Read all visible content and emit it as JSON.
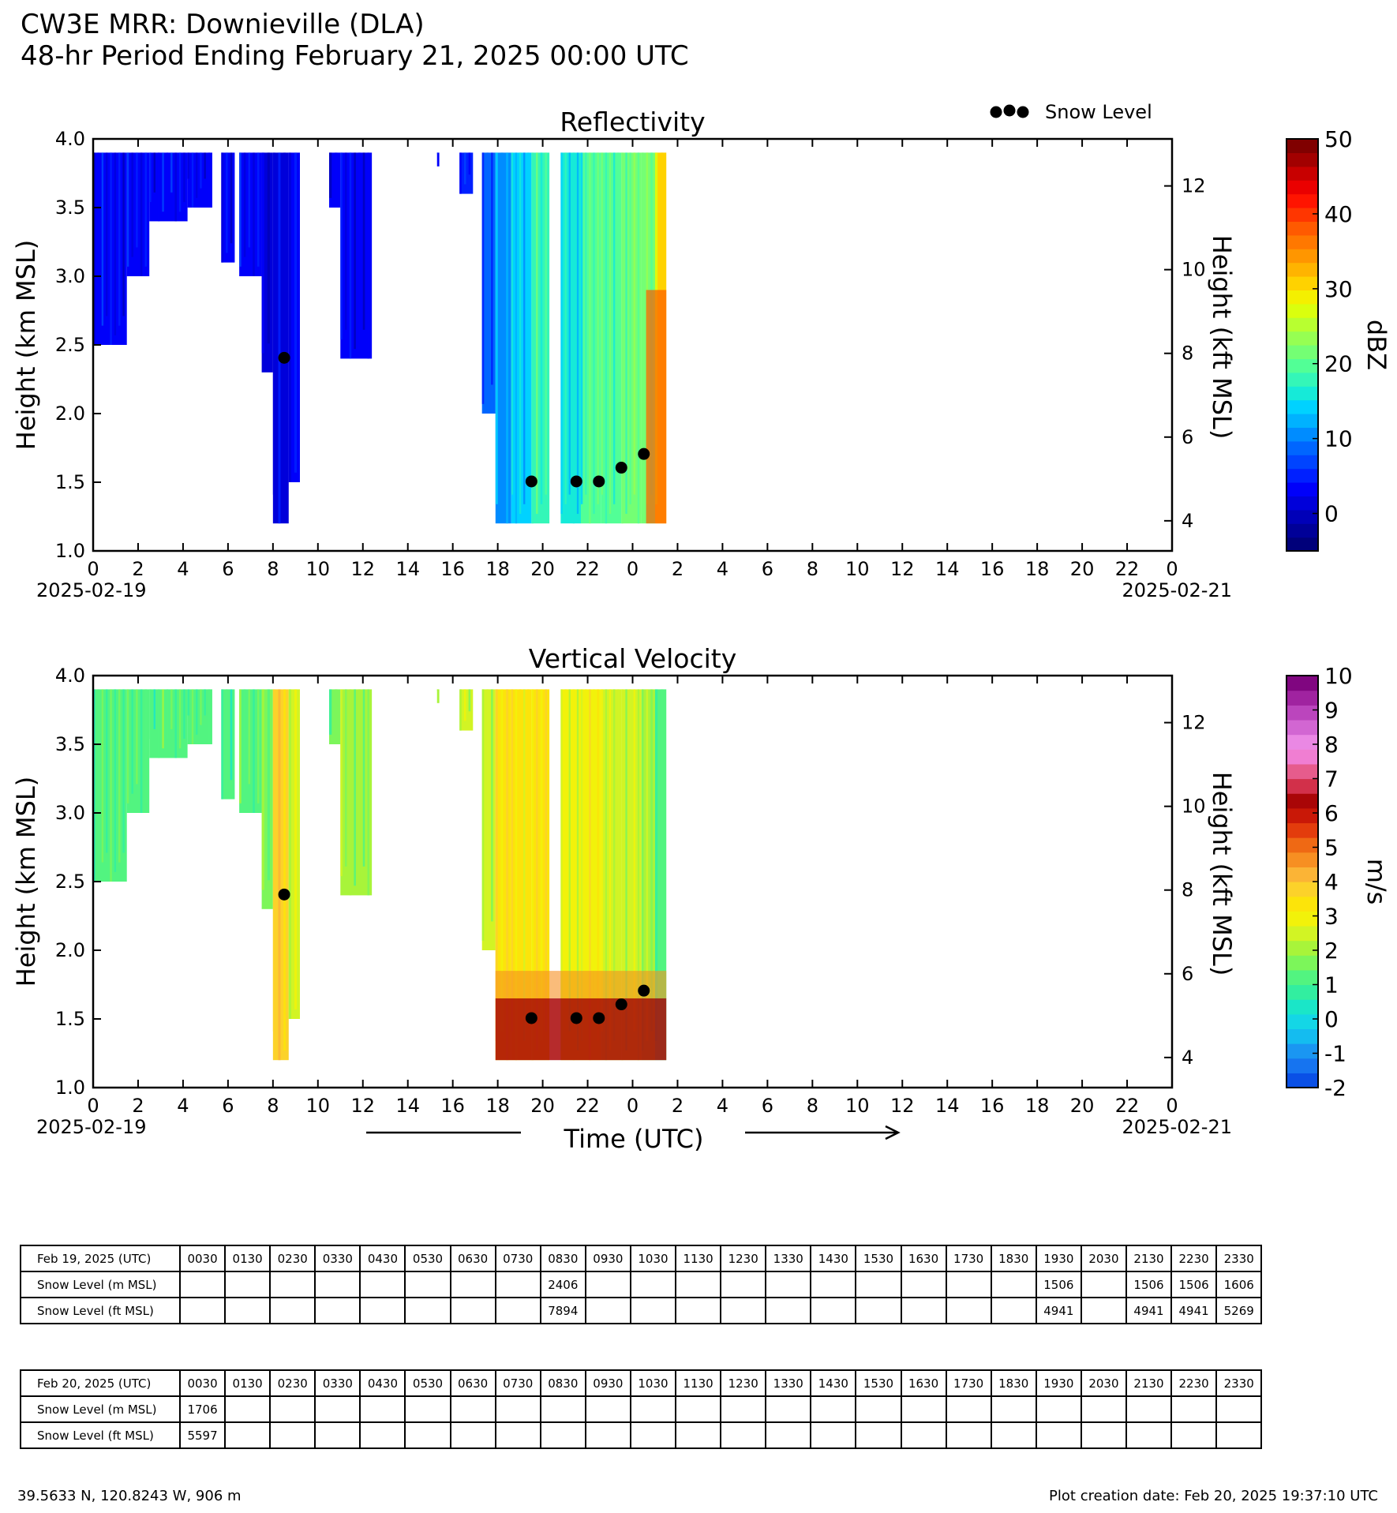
{
  "header": {
    "title": "CW3E MRR: Downieville (DLA)",
    "subtitle": "48-hr Period Ending February 21, 2025 00:00 UTC"
  },
  "legend": {
    "snow_level": "Snow Level"
  },
  "chart_data": [
    {
      "type": "heatmap",
      "title": "Reflectivity",
      "ylabel": "Height (km MSL)",
      "y2label": "Height (kft MSL)",
      "ylim": [
        1.0,
        4.0
      ],
      "yticks": [
        "1.0",
        "1.5",
        "2.0",
        "2.5",
        "3.0",
        "3.5",
        "4.0"
      ],
      "y2ticks": [
        "4",
        "6",
        "8",
        "10",
        "12"
      ],
      "xlim_hours": [
        0,
        48
      ],
      "xtick_labels": [
        "0",
        "2",
        "4",
        "6",
        "8",
        "10",
        "12",
        "14",
        "16",
        "18",
        "20",
        "22",
        "0",
        "2",
        "4",
        "6",
        "8",
        "10",
        "12",
        "14",
        "16",
        "18",
        "20",
        "22",
        "0"
      ],
      "x_start_label": "2025-02-19",
      "x_end_label": "2025-02-21",
      "colorbar": {
        "label": "dBZ",
        "min": -5,
        "max": 50,
        "ticks": [
          "0",
          "10",
          "20",
          "30",
          "40",
          "50"
        ]
      },
      "snow_level_points": [
        {
          "hour": 8.5,
          "km": 2.406
        },
        {
          "hour": 19.5,
          "km": 1.506
        },
        {
          "hour": 21.5,
          "km": 1.506
        },
        {
          "hour": 22.5,
          "km": 1.506
        },
        {
          "hour": 23.5,
          "km": 1.606
        },
        {
          "hour": 24.5,
          "km": 1.706
        }
      ],
      "echo_columns": [
        {
          "from": 0.0,
          "to": 1.5,
          "base_km": 2.5,
          "value": 3
        },
        {
          "from": 1.5,
          "to": 2.5,
          "base_km": 3.0,
          "value": 4
        },
        {
          "from": 2.5,
          "to": 4.2,
          "base_km": 3.4,
          "value": 4
        },
        {
          "from": 4.2,
          "to": 5.3,
          "base_km": 3.5,
          "value": 3
        },
        {
          "from": 5.7,
          "to": 6.3,
          "base_km": 3.1,
          "value": 4
        },
        {
          "from": 6.5,
          "to": 7.5,
          "base_km": 3.0,
          "value": 3
        },
        {
          "from": 7.5,
          "to": 8.0,
          "base_km": 2.3,
          "value": 2
        },
        {
          "from": 8.0,
          "to": 8.7,
          "base_km": 1.2,
          "value": 2
        },
        {
          "from": 8.7,
          "to": 9.2,
          "base_km": 1.5,
          "value": 3
        },
        {
          "from": 10.5,
          "to": 11.0,
          "base_km": 3.5,
          "value": 3
        },
        {
          "from": 11.0,
          "to": 12.4,
          "base_km": 2.4,
          "value": 3
        },
        {
          "from": 15.3,
          "to": 15.4,
          "base_km": 3.8,
          "value": 4
        },
        {
          "from": 16.3,
          "to": 16.9,
          "base_km": 3.6,
          "value": 5
        },
        {
          "from": 17.3,
          "to": 17.9,
          "base_km": 2.0,
          "value": 9
        },
        {
          "from": 17.9,
          "to": 18.6,
          "base_km": 1.2,
          "value": 11
        },
        {
          "from": 18.6,
          "to": 19.5,
          "base_km": 1.2,
          "value": 15
        },
        {
          "from": 19.5,
          "to": 20.3,
          "base_km": 1.2,
          "value": 18
        },
        {
          "from": 20.8,
          "to": 21.7,
          "base_km": 1.2,
          "value": 16
        },
        {
          "from": 21.7,
          "to": 22.6,
          "base_km": 1.2,
          "value": 19
        },
        {
          "from": 22.6,
          "to": 23.5,
          "base_km": 1.2,
          "value": 20
        },
        {
          "from": 23.5,
          "to": 24.4,
          "base_km": 1.2,
          "value": 21
        },
        {
          "from": 24.4,
          "to": 25.0,
          "base_km": 1.2,
          "value": 22
        },
        {
          "from": 25.0,
          "to": 25.5,
          "base_km": 1.2,
          "value": 30
        }
      ]
    },
    {
      "type": "heatmap",
      "title": "Vertical Velocity",
      "ylabel": "Height (km MSL)",
      "y2label": "Height (kft MSL)",
      "xlabel": "Time (UTC)",
      "ylim": [
        1.0,
        4.0
      ],
      "yticks": [
        "1.0",
        "1.5",
        "2.0",
        "2.5",
        "3.0",
        "3.5",
        "4.0"
      ],
      "y2ticks": [
        "4",
        "6",
        "8",
        "10",
        "12"
      ],
      "xlim_hours": [
        0,
        48
      ],
      "xtick_labels": [
        "0",
        "2",
        "4",
        "6",
        "8",
        "10",
        "12",
        "14",
        "16",
        "18",
        "20",
        "22",
        "0",
        "2",
        "4",
        "6",
        "8",
        "10",
        "12",
        "14",
        "16",
        "18",
        "20",
        "22",
        "0"
      ],
      "x_start_label": "2025-02-19",
      "x_end_label": "2025-02-21",
      "colorbar": {
        "label": "m/s",
        "min": -2,
        "max": 10,
        "ticks": [
          "-2",
          "-1",
          "0",
          "1",
          "2",
          "3",
          "4",
          "5",
          "6",
          "7",
          "8",
          "9",
          "10"
        ]
      },
      "snow_level_points": [
        {
          "hour": 8.5,
          "km": 2.406
        },
        {
          "hour": 19.5,
          "km": 1.506
        },
        {
          "hour": 21.5,
          "km": 1.506
        },
        {
          "hour": 22.5,
          "km": 1.506
        },
        {
          "hour": 23.5,
          "km": 1.606
        },
        {
          "hour": 24.5,
          "km": 1.706
        }
      ],
      "echo_columns": [
        {
          "from": 0.0,
          "to": 1.5,
          "base_km": 2.5,
          "value": 1.2
        },
        {
          "from": 1.5,
          "to": 2.5,
          "base_km": 3.0,
          "value": 1.3
        },
        {
          "from": 2.5,
          "to": 4.2,
          "base_km": 3.4,
          "value": 1.3
        },
        {
          "from": 4.2,
          "to": 5.3,
          "base_km": 3.5,
          "value": 1.2
        },
        {
          "from": 5.7,
          "to": 6.3,
          "base_km": 3.1,
          "value": 1.3
        },
        {
          "from": 6.5,
          "to": 7.5,
          "base_km": 3.0,
          "value": 1.3
        },
        {
          "from": 7.5,
          "to": 8.0,
          "base_km": 2.3,
          "value": 1.8
        },
        {
          "from": 8.0,
          "to": 8.7,
          "base_km": 1.2,
          "value": 3.8
        },
        {
          "from": 8.7,
          "to": 9.2,
          "base_km": 1.5,
          "value": 2.5
        },
        {
          "from": 10.5,
          "to": 11.0,
          "base_km": 3.5,
          "value": 1.6
        },
        {
          "from": 11.0,
          "to": 12.4,
          "base_km": 2.4,
          "value": 1.9
        },
        {
          "from": 15.3,
          "to": 15.4,
          "base_km": 3.8,
          "value": 2.0
        },
        {
          "from": 16.3,
          "to": 16.9,
          "base_km": 3.6,
          "value": 2.3
        },
        {
          "from": 17.3,
          "to": 17.9,
          "base_km": 2.0,
          "value": 2.6
        },
        {
          "from": 17.9,
          "to": 18.6,
          "base_km": 1.2,
          "value": 3.2
        },
        {
          "from": 18.6,
          "to": 19.5,
          "base_km": 1.2,
          "value": 3.4
        },
        {
          "from": 19.5,
          "to": 20.3,
          "base_km": 1.2,
          "value": 3.2
        },
        {
          "from": 20.8,
          "to": 21.7,
          "base_km": 1.2,
          "value": 2.8
        },
        {
          "from": 21.7,
          "to": 22.6,
          "base_km": 1.2,
          "value": 3.1
        },
        {
          "from": 22.6,
          "to": 23.5,
          "base_km": 1.2,
          "value": 2.6
        },
        {
          "from": 23.5,
          "to": 24.4,
          "base_km": 1.2,
          "value": 2.4
        },
        {
          "from": 24.4,
          "to": 25.0,
          "base_km": 1.2,
          "value": 1.9
        },
        {
          "from": 25.0,
          "to": 25.5,
          "base_km": 1.2,
          "value": 1.3
        }
      ]
    }
  ],
  "tables": [
    {
      "date_label": "Feb 19, 2025 (UTC)",
      "times": [
        "0030",
        "0130",
        "0230",
        "0330",
        "0430",
        "0530",
        "0630",
        "0730",
        "0830",
        "0930",
        "1030",
        "1130",
        "1230",
        "1330",
        "1430",
        "1530",
        "1630",
        "1730",
        "1830",
        "1930",
        "2030",
        "2130",
        "2230",
        "2330"
      ],
      "rows": [
        {
          "label": "Snow Level (m MSL)",
          "values": [
            "",
            "",
            "",
            "",
            "",
            "",
            "",
            "",
            "2406",
            "",
            "",
            "",
            "",
            "",
            "",
            "",
            "",
            "",
            "",
            "1506",
            "",
            "1506",
            "1506",
            "1606"
          ]
        },
        {
          "label": "Snow Level (ft MSL)",
          "values": [
            "",
            "",
            "",
            "",
            "",
            "",
            "",
            "",
            "7894",
            "",
            "",
            "",
            "",
            "",
            "",
            "",
            "",
            "",
            "",
            "4941",
            "",
            "4941",
            "4941",
            "5269"
          ]
        }
      ]
    },
    {
      "date_label": "Feb 20, 2025 (UTC)",
      "times": [
        "0030",
        "0130",
        "0230",
        "0330",
        "0430",
        "0530",
        "0630",
        "0730",
        "0830",
        "0930",
        "1030",
        "1130",
        "1230",
        "1330",
        "1430",
        "1530",
        "1630",
        "1730",
        "1830",
        "1930",
        "2030",
        "2130",
        "2230",
        "2330"
      ],
      "rows": [
        {
          "label": "Snow Level (m MSL)",
          "values": [
            "1706",
            "",
            "",
            "",
            "",
            "",
            "",
            "",
            "",
            "",
            "",
            "",
            "",
            "",
            "",
            "",
            "",
            "",
            "",
            "",
            "",
            "",
            "",
            ""
          ]
        },
        {
          "label": "Snow Level (ft MSL)",
          "values": [
            "5597",
            "",
            "",
            "",
            "",
            "",
            "",
            "",
            "",
            "",
            "",
            "",
            "",
            "",
            "",
            "",
            "",
            "",
            "",
            "",
            "",
            "",
            "",
            ""
          ]
        }
      ]
    }
  ],
  "footer": {
    "location": "39.5633 N, 120.8243 W, 906 m",
    "created": "Plot creation date: Feb 20, 2025 19:37:10 UTC"
  },
  "colormaps": {
    "reflectivity": [
      "#00007a",
      "#000098",
      "#0000b8",
      "#0000da",
      "#0000fa",
      "#0020ff",
      "#0044ff",
      "#0066ff",
      "#008cff",
      "#00b2ff",
      "#00d2ff",
      "#16ead8",
      "#34f6b8",
      "#52ff96",
      "#74ff74",
      "#96ff52",
      "#b8ff30",
      "#daff0e",
      "#f4f000",
      "#ffd200",
      "#ffb400",
      "#ff9600",
      "#ff7800",
      "#ff5a00",
      "#ff3600",
      "#ff1400",
      "#ea0000",
      "#c80000",
      "#a20000",
      "#800000"
    ],
    "velocity": [
      "#0a50e6",
      "#1674f0",
      "#1a96f2",
      "#14bcf0",
      "#14d6e6",
      "#1ae6c8",
      "#32eea0",
      "#52f480",
      "#7cf65a",
      "#a8f43a",
      "#d2f424",
      "#f2f20a",
      "#fce40a",
      "#fcd22a",
      "#fbb436",
      "#f78f22",
      "#ef6914",
      "#e33c0c",
      "#c91807",
      "#a90607",
      "#d2304a",
      "#e65c8c",
      "#f07ed2",
      "#ea88e4",
      "#d266d2",
      "#bb45bd",
      "#a023a0",
      "#800680"
    ]
  }
}
